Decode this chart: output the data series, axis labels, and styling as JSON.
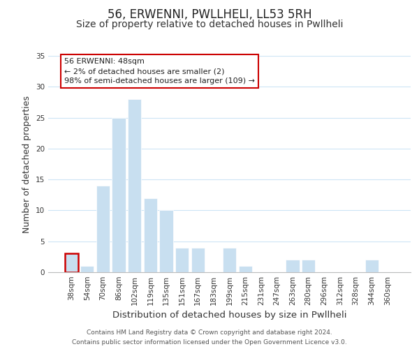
{
  "title": "56, ERWENNI, PWLLHELI, LL53 5RH",
  "subtitle": "Size of property relative to detached houses in Pwllheli",
  "xlabel": "Distribution of detached houses by size in Pwllheli",
  "ylabel": "Number of detached properties",
  "bar_labels": [
    "38sqm",
    "54sqm",
    "70sqm",
    "86sqm",
    "102sqm",
    "119sqm",
    "135sqm",
    "151sqm",
    "167sqm",
    "183sqm",
    "199sqm",
    "215sqm",
    "231sqm",
    "247sqm",
    "263sqm",
    "280sqm",
    "296sqm",
    "312sqm",
    "328sqm",
    "344sqm",
    "360sqm"
  ],
  "bar_values": [
    3,
    1,
    14,
    25,
    28,
    12,
    10,
    4,
    4,
    0,
    4,
    1,
    0,
    0,
    2,
    2,
    0,
    0,
    0,
    2,
    0
  ],
  "bar_color": "#c8dff0",
  "highlight_bar_index": 0,
  "highlight_outline_color": "#cc0000",
  "ylim": [
    0,
    35
  ],
  "yticks": [
    0,
    5,
    10,
    15,
    20,
    25,
    30,
    35
  ],
  "annotation_title": "56 ERWENNI: 48sqm",
  "annotation_line1": "← 2% of detached houses are smaller (2)",
  "annotation_line2": "98% of semi-detached houses are larger (109) →",
  "annotation_box_color": "#ffffff",
  "annotation_box_edgecolor": "#cc0000",
  "footer_line1": "Contains HM Land Registry data © Crown copyright and database right 2024.",
  "footer_line2": "Contains public sector information licensed under the Open Government Licence v3.0.",
  "background_color": "#ffffff",
  "grid_color": "#cde4f5",
  "title_fontsize": 12,
  "subtitle_fontsize": 10,
  "axis_label_fontsize": 9,
  "tick_fontsize": 7.5,
  "footer_fontsize": 6.5
}
